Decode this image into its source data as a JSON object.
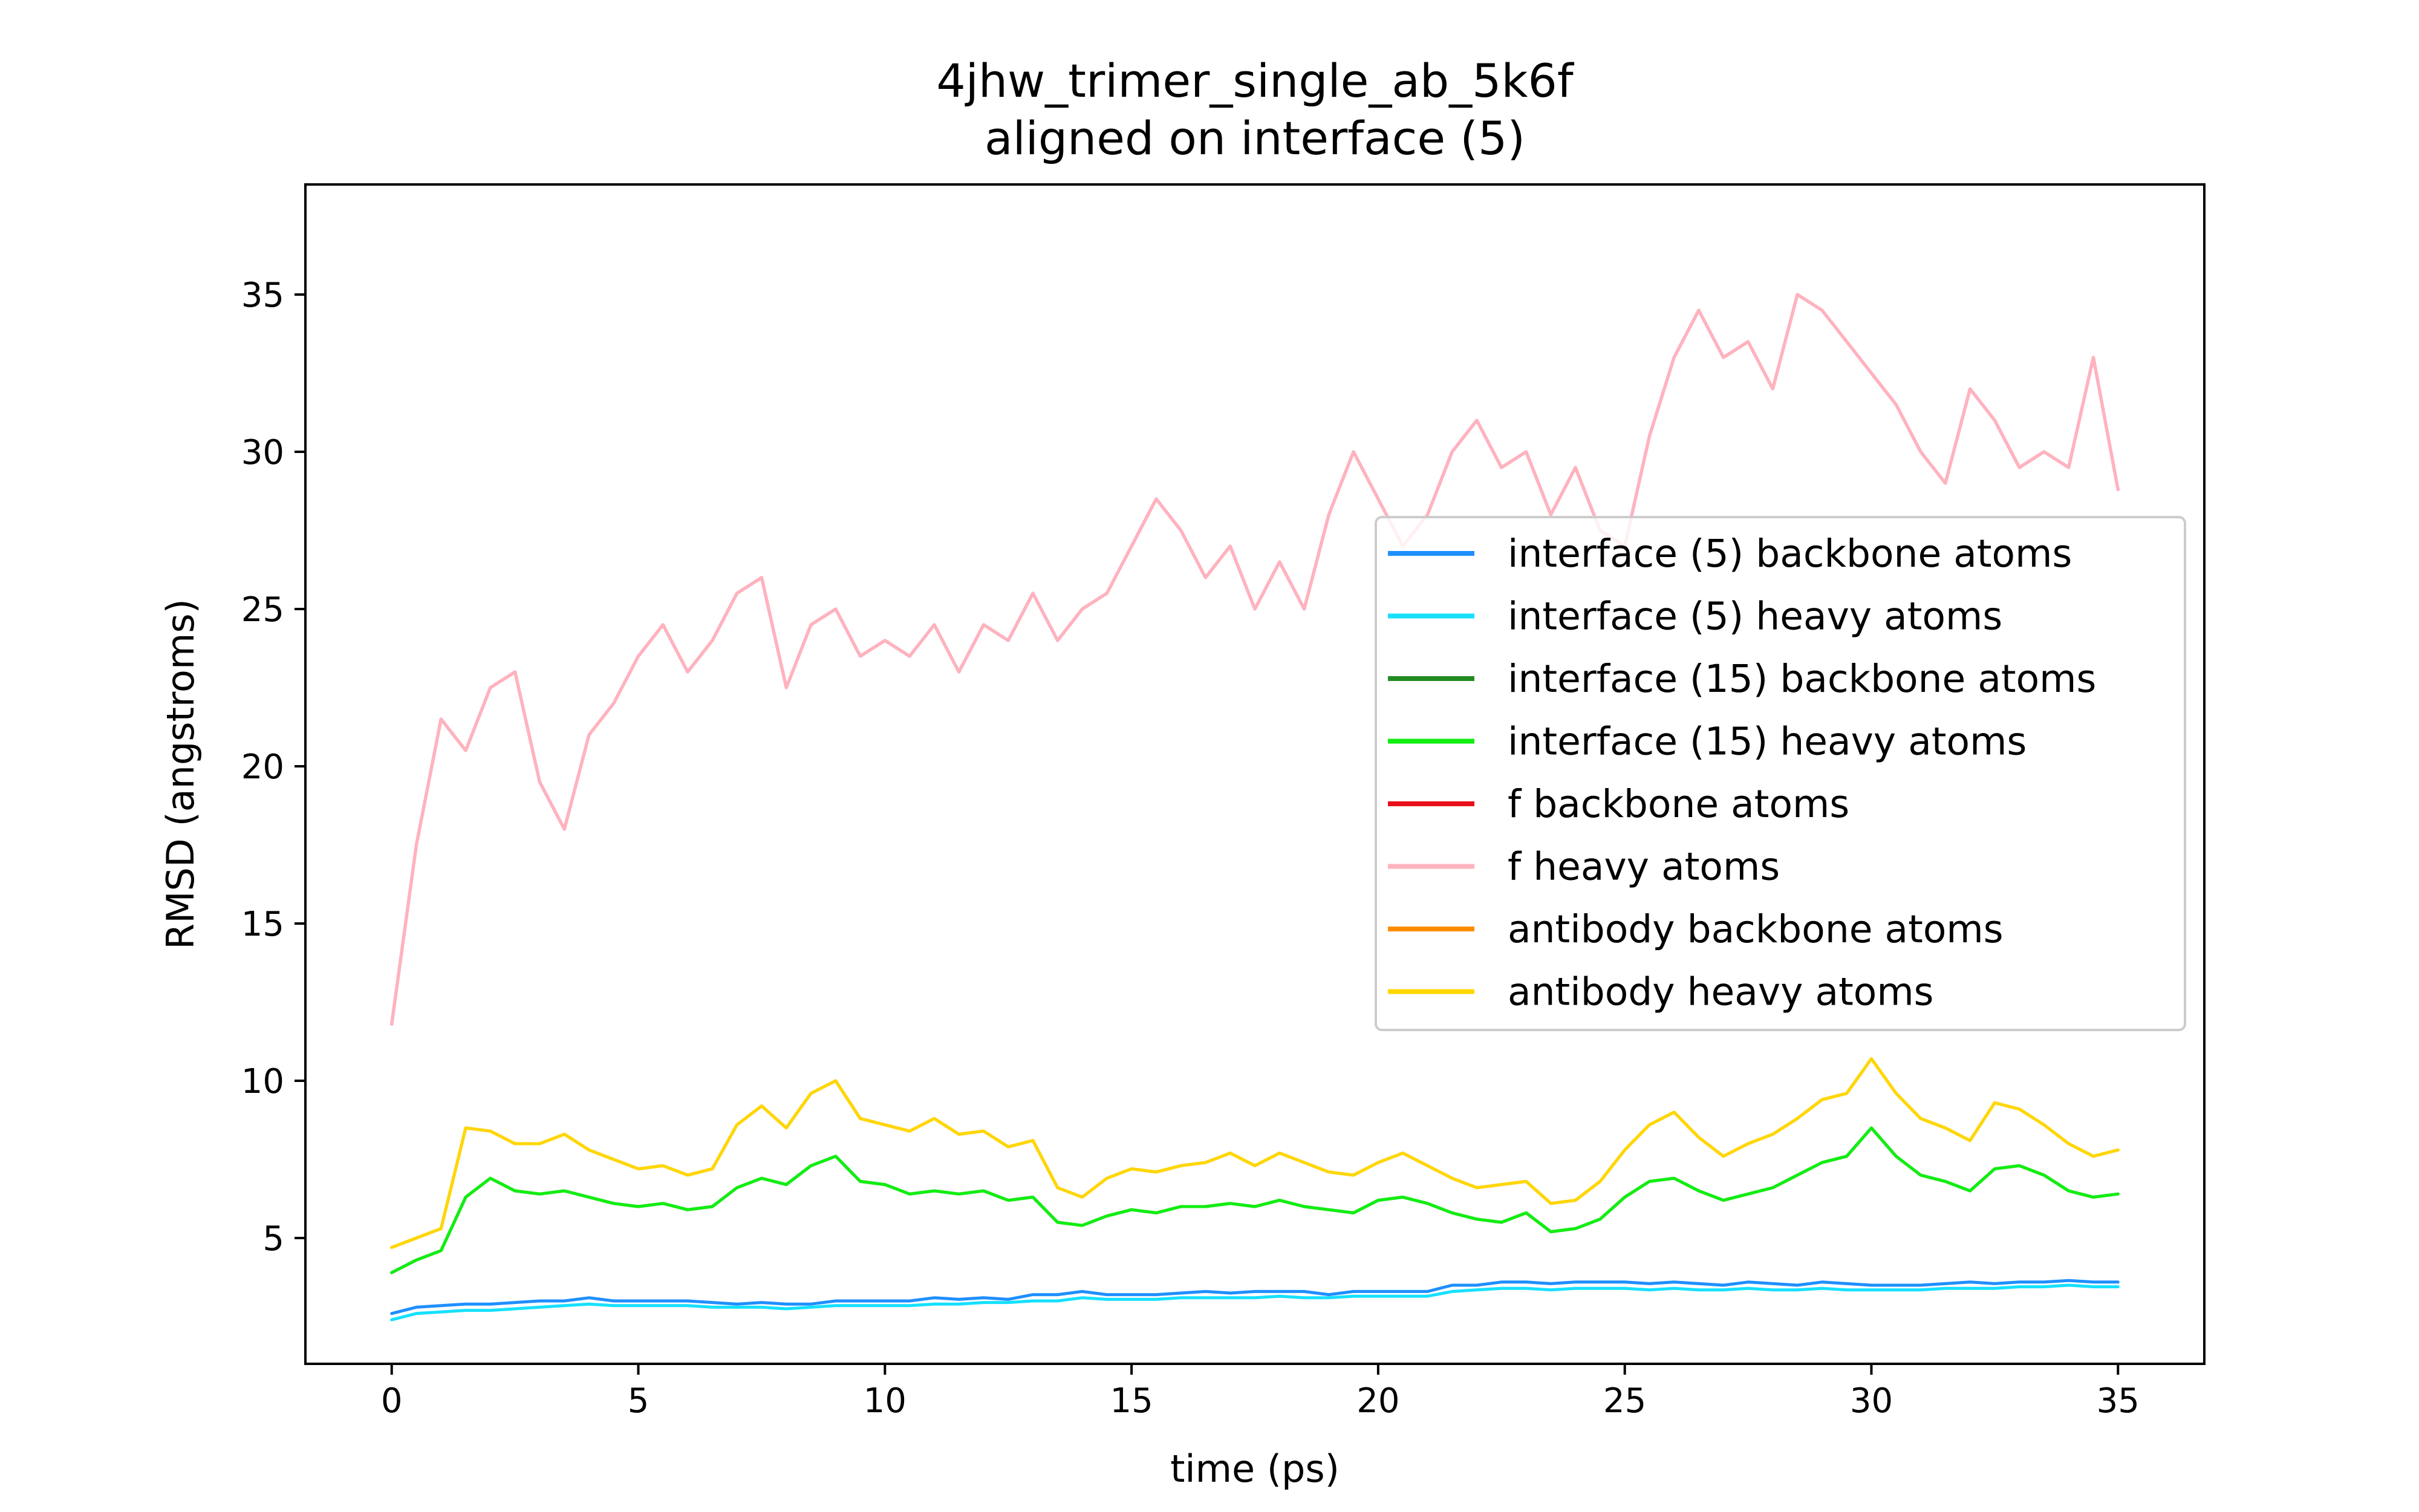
{
  "chart_data": {
    "type": "line",
    "title": "4jhw_trimer_single_ab_5k6f",
    "subtitle": "aligned on interface (5)",
    "xlabel": "time (ps)",
    "ylabel": "RMSD (angstroms)",
    "xlim": [
      -1.75,
      36.75
    ],
    "ylim": [
      1.0,
      38.5
    ],
    "xticks": [
      0,
      5,
      10,
      15,
      20,
      25,
      30,
      35
    ],
    "yticks": [
      5,
      10,
      15,
      20,
      25,
      30,
      35
    ],
    "grid": false,
    "legend_position": "center-right",
    "x": [
      0,
      0.5,
      1,
      1.5,
      2,
      2.5,
      3,
      3.5,
      4,
      4.5,
      5,
      5.5,
      6,
      6.5,
      7,
      7.5,
      8,
      8.5,
      9,
      9.5,
      10,
      10.5,
      11,
      11.5,
      12,
      12.5,
      13,
      13.5,
      14,
      14.5,
      15,
      15.5,
      16,
      16.5,
      17,
      17.5,
      18,
      18.5,
      19,
      19.5,
      20,
      20.5,
      21,
      21.5,
      22,
      22.5,
      23,
      23.5,
      24,
      24.5,
      25,
      25.5,
      26,
      26.5,
      27,
      27.5,
      28,
      28.5,
      29,
      29.5,
      30,
      30.5,
      31,
      31.5,
      32,
      32.5,
      33,
      33.5,
      34,
      34.5,
      35
    ],
    "series": [
      {
        "name": "interface (5) backbone atoms",
        "color": "#1f8fff",
        "values": [
          2.6,
          2.8,
          2.85,
          2.9,
          2.9,
          2.95,
          3.0,
          3.0,
          3.1,
          3.0,
          3.0,
          3.0,
          3.0,
          2.95,
          2.9,
          2.95,
          2.9,
          2.9,
          3.0,
          3.0,
          3.0,
          3.0,
          3.1,
          3.05,
          3.1,
          3.05,
          3.2,
          3.2,
          3.3,
          3.2,
          3.2,
          3.2,
          3.25,
          3.3,
          3.25,
          3.3,
          3.3,
          3.3,
          3.2,
          3.3,
          3.3,
          3.3,
          3.3,
          3.5,
          3.5,
          3.6,
          3.6,
          3.55,
          3.6,
          3.6,
          3.6,
          3.55,
          3.6,
          3.55,
          3.5,
          3.6,
          3.55,
          3.5,
          3.6,
          3.55,
          3.5,
          3.5,
          3.5,
          3.55,
          3.6,
          3.55,
          3.6,
          3.6,
          3.65,
          3.6,
          3.6
        ]
      },
      {
        "name": "interface (5) heavy atoms",
        "color": "#16e0ff",
        "values": [
          2.4,
          2.6,
          2.65,
          2.7,
          2.7,
          2.75,
          2.8,
          2.85,
          2.9,
          2.85,
          2.85,
          2.85,
          2.85,
          2.8,
          2.8,
          2.8,
          2.75,
          2.8,
          2.85,
          2.85,
          2.85,
          2.85,
          2.9,
          2.9,
          2.95,
          2.95,
          3.0,
          3.0,
          3.1,
          3.05,
          3.05,
          3.05,
          3.1,
          3.1,
          3.1,
          3.1,
          3.15,
          3.1,
          3.1,
          3.15,
          3.15,
          3.15,
          3.15,
          3.3,
          3.35,
          3.4,
          3.4,
          3.35,
          3.4,
          3.4,
          3.4,
          3.35,
          3.4,
          3.35,
          3.35,
          3.4,
          3.35,
          3.35,
          3.4,
          3.35,
          3.35,
          3.35,
          3.35,
          3.4,
          3.4,
          3.4,
          3.45,
          3.45,
          3.5,
          3.45,
          3.45
        ]
      },
      {
        "name": "interface (15) backbone atoms",
        "color": "#228b22",
        "values": [
          3.9,
          4.3,
          4.6,
          6.3,
          6.9,
          6.5,
          6.4,
          6.5,
          6.3,
          6.1,
          6.0,
          6.1,
          5.9,
          6.0,
          6.6,
          6.9,
          6.7,
          7.3,
          7.6,
          6.8,
          6.7,
          6.4,
          6.5,
          6.4,
          6.5,
          6.2,
          6.3,
          5.5,
          5.4,
          5.7,
          5.9,
          5.8,
          6.0,
          6.0,
          6.1,
          6.0,
          6.2,
          6.0,
          5.9,
          5.8,
          6.2,
          6.3,
          6.1,
          5.8,
          5.6,
          5.5,
          5.8,
          5.2,
          5.3,
          5.6,
          6.3,
          6.8,
          6.9,
          6.5,
          6.2,
          6.4,
          6.6,
          7.0,
          7.4,
          7.6,
          8.5,
          7.6,
          7.0,
          6.8,
          6.5,
          7.2,
          7.3,
          7.0,
          6.5,
          6.3,
          6.4
        ]
      },
      {
        "name": "interface (15) heavy atoms",
        "color": "#11ee11",
        "values": [
          3.9,
          4.3,
          4.6,
          6.3,
          6.9,
          6.5,
          6.4,
          6.5,
          6.3,
          6.1,
          6.0,
          6.1,
          5.9,
          6.0,
          6.6,
          6.9,
          6.7,
          7.3,
          7.6,
          6.8,
          6.7,
          6.4,
          6.5,
          6.4,
          6.5,
          6.2,
          6.3,
          5.5,
          5.4,
          5.7,
          5.9,
          5.8,
          6.0,
          6.0,
          6.1,
          6.0,
          6.2,
          6.0,
          5.9,
          5.8,
          6.2,
          6.3,
          6.1,
          5.8,
          5.6,
          5.5,
          5.8,
          5.2,
          5.3,
          5.6,
          6.3,
          6.8,
          6.9,
          6.5,
          6.2,
          6.4,
          6.6,
          7.0,
          7.4,
          7.6,
          8.5,
          7.6,
          7.0,
          6.8,
          6.5,
          7.2,
          7.3,
          7.0,
          6.5,
          6.3,
          6.4
        ]
      },
      {
        "name": "f backbone atoms",
        "color": "#e8101a",
        "values": [
          11.8,
          17.5,
          21.5,
          20.5,
          22.5,
          23.0,
          19.5,
          18.0,
          21.0,
          22.0,
          23.5,
          24.5,
          23.0,
          24.0,
          25.5,
          26.0,
          22.5,
          24.5,
          25.0,
          23.5,
          24.0,
          23.5,
          24.5,
          23.0,
          24.5,
          24.0,
          25.5,
          24.0,
          25.0,
          25.5,
          27.0,
          28.5,
          27.5,
          26.0,
          27.0,
          25.0,
          26.5,
          25.0,
          28.0,
          30.0,
          28.5,
          27.0,
          28.0,
          30.0,
          31.0,
          29.5,
          30.0,
          28.0,
          29.5,
          27.5,
          27.0,
          30.5,
          33.0,
          34.5,
          33.0,
          33.5,
          32.0,
          35.0,
          34.5,
          33.5,
          32.5,
          31.5,
          30.0,
          29.0,
          32.0,
          31.0,
          29.5,
          30.0,
          29.5,
          33.0,
          28.8
        ]
      },
      {
        "name": "f heavy atoms",
        "color": "#ffb3bf",
        "values": [
          11.8,
          17.5,
          21.5,
          20.5,
          22.5,
          23.0,
          19.5,
          18.0,
          21.0,
          22.0,
          23.5,
          24.5,
          23.0,
          24.0,
          25.5,
          26.0,
          22.5,
          24.5,
          25.0,
          23.5,
          24.0,
          23.5,
          24.5,
          23.0,
          24.5,
          24.0,
          25.5,
          24.0,
          25.0,
          25.5,
          27.0,
          28.5,
          27.5,
          26.0,
          27.0,
          25.0,
          26.5,
          25.0,
          28.0,
          30.0,
          28.5,
          27.0,
          28.0,
          30.0,
          31.0,
          29.5,
          30.0,
          28.0,
          29.5,
          27.5,
          27.0,
          30.5,
          33.0,
          34.5,
          33.0,
          33.5,
          32.0,
          35.0,
          34.5,
          33.5,
          32.5,
          31.5,
          30.0,
          29.0,
          32.0,
          31.0,
          29.5,
          30.0,
          29.5,
          33.0,
          28.8
        ]
      },
      {
        "name": "antibody backbone atoms",
        "color": "#ff8c00",
        "values": [
          4.7,
          5.0,
          5.3,
          8.5,
          8.4,
          8.0,
          8.0,
          8.3,
          7.8,
          7.5,
          7.2,
          7.3,
          7.0,
          7.2,
          8.6,
          9.2,
          8.5,
          9.6,
          10.0,
          8.8,
          8.6,
          8.4,
          8.8,
          8.3,
          8.4,
          7.9,
          8.1,
          6.6,
          6.3,
          6.9,
          7.2,
          7.1,
          7.3,
          7.4,
          7.7,
          7.3,
          7.7,
          7.4,
          7.1,
          7.0,
          7.4,
          7.7,
          7.3,
          6.9,
          6.6,
          6.7,
          6.8,
          6.1,
          6.2,
          6.8,
          7.8,
          8.6,
          9.0,
          8.2,
          7.6,
          8.0,
          8.3,
          8.8,
          9.4,
          9.6,
          10.7,
          9.6,
          8.8,
          8.5,
          8.1,
          9.3,
          9.1,
          8.6,
          8.0,
          7.6,
          7.8
        ]
      },
      {
        "name": "antibody heavy atoms",
        "color": "#ffd700",
        "values": [
          4.7,
          5.0,
          5.3,
          8.5,
          8.4,
          8.0,
          8.0,
          8.3,
          7.8,
          7.5,
          7.2,
          7.3,
          7.0,
          7.2,
          8.6,
          9.2,
          8.5,
          9.6,
          10.0,
          8.8,
          8.6,
          8.4,
          8.8,
          8.3,
          8.4,
          7.9,
          8.1,
          6.6,
          6.3,
          6.9,
          7.2,
          7.1,
          7.3,
          7.4,
          7.7,
          7.3,
          7.7,
          7.4,
          7.1,
          7.0,
          7.4,
          7.7,
          7.3,
          6.9,
          6.6,
          6.7,
          6.8,
          6.1,
          6.2,
          6.8,
          7.8,
          8.6,
          9.0,
          8.2,
          7.6,
          8.0,
          8.3,
          8.8,
          9.4,
          9.6,
          10.7,
          9.6,
          8.8,
          8.5,
          8.1,
          9.3,
          9.1,
          8.6,
          8.0,
          7.6,
          7.8
        ]
      }
    ]
  }
}
